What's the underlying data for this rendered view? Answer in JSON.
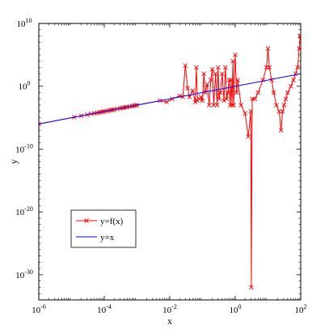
{
  "chart_data": {
    "type": "line",
    "xlabel": "x",
    "ylabel": "y",
    "xscale": "log",
    "yscale": "log",
    "xlim": [
      1e-06,
      100
    ],
    "ylim": [
      1e-34,
      10000000000.0
    ],
    "grid": false,
    "box": true,
    "x_ticks": [
      {
        "value": 1e-06,
        "base": "10",
        "exp": "-6"
      },
      {
        "value": 0.0001,
        "base": "10",
        "exp": "-4"
      },
      {
        "value": 0.01,
        "base": "10",
        "exp": "-2"
      },
      {
        "value": 1,
        "base": "10",
        "exp": "0"
      },
      {
        "value": 100,
        "base": "10",
        "exp": "2"
      }
    ],
    "y_ticks": [
      {
        "value": 10000000000.0,
        "base": "10",
        "exp": "10"
      },
      {
        "value": 1,
        "base": "10",
        "exp": "0"
      },
      {
        "value": 1e-10,
        "base": "10",
        "exp": "-10"
      },
      {
        "value": 1e-20,
        "base": "10",
        "exp": "-20"
      },
      {
        "value": 1e-30,
        "base": "10",
        "exp": "-30"
      }
    ],
    "legend": {
      "position": "lower-left",
      "entries": [
        "y=f(x)",
        "y=x"
      ]
    },
    "series": [
      {
        "name": "y=f(x)",
        "color": "#ff0000",
        "marker": "x",
        "points": [
          [
            1e-06,
            1e-06
          ],
          [
            1.2e-05,
            1.2e-05
          ],
          [
            2e-05,
            2e-05
          ],
          [
            3e-05,
            3e-05
          ],
          [
            4e-05,
            4e-05
          ],
          [
            5e-05,
            5e-05
          ],
          [
            6e-05,
            6e-05
          ],
          [
            7e-05,
            7e-05
          ],
          [
            8e-05,
            8e-05
          ],
          [
            9e-05,
            9e-05
          ],
          [
            0.0001,
            0.0001
          ],
          [
            0.00012,
            0.00012
          ],
          [
            0.00014,
            0.00014
          ],
          [
            0.00016,
            0.00016
          ],
          [
            0.00018,
            0.00018
          ],
          [
            0.0002,
            0.0002
          ],
          [
            0.00025,
            0.00025
          ],
          [
            0.0003,
            0.0003
          ],
          [
            0.00035,
            0.00035
          ],
          [
            0.0004,
            0.0004
          ],
          [
            0.00045,
            0.00045
          ],
          [
            0.0005,
            0.0005
          ],
          [
            0.0006,
            0.0006
          ],
          [
            0.0007,
            0.0007
          ],
          [
            0.0008,
            0.0008
          ],
          [
            0.0009,
            0.0009
          ],
          [
            0.001,
            0.001
          ],
          [
            0.005,
            0.005
          ],
          [
            0.008,
            0.003
          ],
          [
            0.012,
            0.01
          ],
          [
            0.02,
            0.03
          ],
          [
            0.025,
            0.02
          ],
          [
            0.03,
            2000.0
          ],
          [
            0.035,
            0.5
          ],
          [
            0.04,
            0.02
          ],
          [
            0.05,
            0.2
          ],
          [
            0.06,
            0.003
          ],
          [
            0.065,
            1000.0
          ],
          [
            0.07,
            0.005
          ],
          [
            0.08,
            0.01
          ],
          [
            0.09,
            0.02
          ],
          [
            0.1,
            0.005
          ],
          [
            0.11,
            100.0
          ],
          [
            0.12,
            0.1
          ],
          [
            0.14,
            2
          ],
          [
            0.16,
            0.001
          ],
          [
            0.18,
            10
          ],
          [
            0.2,
            500.0
          ],
          [
            0.22,
            0.001
          ],
          [
            0.25,
            100.0
          ],
          [
            0.28,
            0.001
          ],
          [
            0.3,
            1000.0
          ],
          [
            0.32,
            0.01
          ],
          [
            0.35,
            0.1
          ],
          [
            0.4,
            100.0
          ],
          [
            0.45,
            0.005
          ],
          [
            0.5,
            1000.0
          ],
          [
            0.55,
            0.01
          ],
          [
            0.6,
            0.1
          ],
          [
            0.65,
            10
          ],
          [
            0.7,
            0.001
          ],
          [
            0.75,
            10
          ],
          [
            0.8,
            0.001
          ],
          [
            0.85,
            10000.0
          ],
          [
            0.9,
            0.001
          ],
          [
            1.0,
            100000.0
          ],
          [
            1.1,
            0.1
          ],
          [
            1.2,
            10
          ],
          [
            1.5,
            0.001
          ],
          [
            2.0,
            5e-05
          ],
          [
            2.5,
            1e-08
          ],
          [
            3.0,
            0.0001
          ],
          [
            3.1,
            1e-32
          ],
          [
            3.3,
            0.01
          ],
          [
            4.0,
            0.01
          ],
          [
            5.0,
            0.1
          ],
          [
            7.0,
            10
          ],
          [
            9.0,
            1000.0
          ],
          [
            10.0,
            1000000.0
          ],
          [
            11.0,
            1000.0
          ],
          [
            13.0,
            10
          ],
          [
            15.0,
            0.1
          ],
          [
            18.0,
            0.001
          ],
          [
            22.0,
            0.0001
          ],
          [
            25.0,
            1e-07
          ],
          [
            28.0,
            0.0001
          ],
          [
            31.0,
            0.001
          ],
          [
            35.0,
            0.01
          ],
          [
            40.0,
            0.1
          ],
          [
            50.0,
            1
          ],
          [
            60.0,
            10
          ],
          [
            70.0,
            100
          ],
          [
            80.0,
            1000.0
          ],
          [
            90.0,
            1000000.0
          ],
          [
            95.0,
            100000000.0
          ],
          [
            100.0,
            100000000.0
          ]
        ]
      },
      {
        "name": "y=x",
        "color": "#0000ff",
        "marker": "none",
        "points": [
          [
            1e-06,
            1e-06
          ],
          [
            100,
            100
          ]
        ]
      }
    ]
  }
}
